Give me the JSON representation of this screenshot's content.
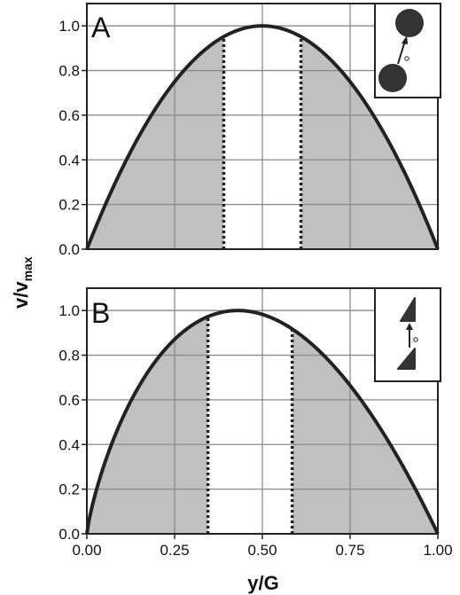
{
  "axis_titles": {
    "y_main": "v/v",
    "y_sub": "max",
    "x": "y/G"
  },
  "chart_data": [
    {
      "type": "area",
      "panel_label": "A",
      "x_tick_labels": [],
      "y_tick_labels": [
        "0.0",
        "0.2",
        "0.4",
        "0.6",
        "0.8",
        "1.0"
      ],
      "xlim": [
        0,
        1
      ],
      "ylim": [
        0,
        1.1
      ],
      "grid": true,
      "curve": {
        "model": "parabola",
        "peak_x": 0.5,
        "peak_y": 1.0
      },
      "dotted_lines_x": [
        0.39,
        0.61
      ],
      "shaded_regions": [
        [
          0,
          0.39
        ],
        [
          0.61,
          1.0
        ]
      ],
      "shade_color": "#c0c0c0",
      "curve_color": "#222222",
      "inset": "two-circles-icon"
    },
    {
      "type": "area",
      "panel_label": "B",
      "x_tick_labels": [
        "0.00",
        "0.25",
        "0.50",
        "0.75",
        "1.00"
      ],
      "y_tick_labels": [
        "0.0",
        "0.2",
        "0.4",
        "0.6",
        "0.8",
        "1.0"
      ],
      "xlim": [
        0,
        1
      ],
      "ylim": [
        0,
        1.1
      ],
      "grid": true,
      "curve": {
        "model": "skewed-parabola",
        "peak_x": 0.43,
        "peak_y": 1.0
      },
      "dotted_lines_x": [
        0.345,
        0.585
      ],
      "shaded_regions": [
        [
          0,
          0.345
        ],
        [
          0.585,
          1.0
        ]
      ],
      "shade_color": "#c0c0c0",
      "curve_color": "#222222",
      "inset": "two-triangles-icon"
    }
  ]
}
